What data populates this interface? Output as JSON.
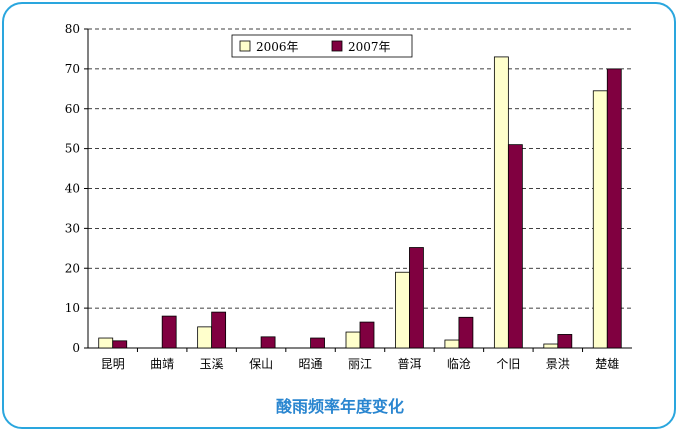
{
  "caption": "酸雨频率年度变化",
  "chart_data": {
    "type": "bar",
    "title": "",
    "xlabel": "",
    "ylabel": "",
    "ylim": [
      0,
      80
    ],
    "yticks": [
      0,
      10,
      20,
      30,
      40,
      50,
      60,
      70,
      80
    ],
    "grid": "horizontal dashed",
    "legend_position": "top-center",
    "categories": [
      "昆明",
      "曲靖",
      "玉溪",
      "保山",
      "昭通",
      "丽江",
      "普洱",
      "临沧",
      "个旧",
      "景洪",
      "楚雄"
    ],
    "series": [
      {
        "name": "2006年",
        "color": "#ffffcc",
        "values": [
          2.5,
          0,
          5.3,
          0,
          0,
          4.0,
          19.0,
          2.0,
          73.0,
          1.0,
          64.5
        ]
      },
      {
        "name": "2007年",
        "color": "#800040",
        "values": [
          1.8,
          8.0,
          9.0,
          2.8,
          2.5,
          6.5,
          25.2,
          7.7,
          51.0,
          3.4,
          70.0
        ]
      }
    ]
  },
  "colors": {
    "frame": "#2aa6de",
    "caption": "#2a86d0",
    "bar_2006": "#ffffcc",
    "bar_2007": "#800040"
  }
}
